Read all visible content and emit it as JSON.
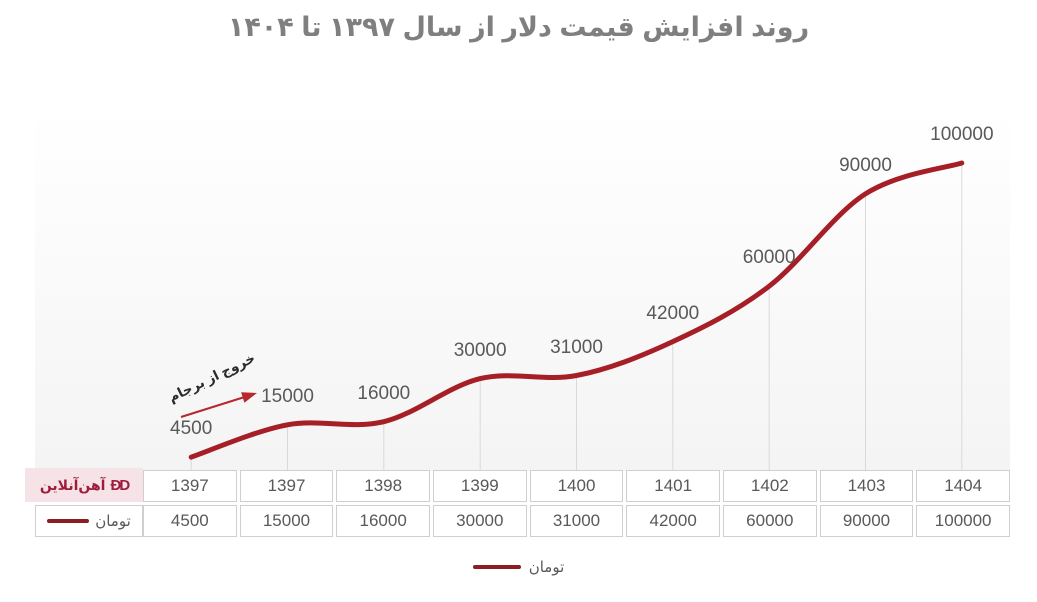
{
  "title": "روند افزایش قیمت دلار از سال ۱۳۹۷ تا ۱۴۰۴",
  "annotation": {
    "text": "خروج از برجام"
  },
  "logo": {
    "name": "آهن‌آنلاین",
    "icon_glyph": "ĐD"
  },
  "legend": {
    "series_label": "تومان"
  },
  "chart_data": {
    "type": "line",
    "title": "روند افزایش قیمت دلار از سال ۱۳۹۷ تا ۱۴۰۴",
    "categories": [
      "1397",
      "1397",
      "1398",
      "1399",
      "1400",
      "1401",
      "1402",
      "1403",
      "1404"
    ],
    "series": [
      {
        "name": "تومان",
        "values": [
          4500,
          15000,
          16000,
          30000,
          31000,
          42000,
          60000,
          90000,
          100000
        ]
      }
    ],
    "xlabel": "",
    "ylabel": "",
    "ylim": [
      0,
      100000
    ],
    "grid": "drop-lines-per-point",
    "data_labels": true,
    "data_table_shown": true,
    "legend_position": "bottom",
    "annotation": "خروج از برجام",
    "colors": {
      "line": "#A61E26",
      "legend_dash": "#8B1E23",
      "labels": "#595959",
      "drop_lines": "#D9D9D9",
      "title": "#7F7F7F",
      "logo": "#A01C3C",
      "logo_bg": "#F6E3E8",
      "arrow": "#B4282E",
      "table_border": "#CFCFCF"
    }
  }
}
